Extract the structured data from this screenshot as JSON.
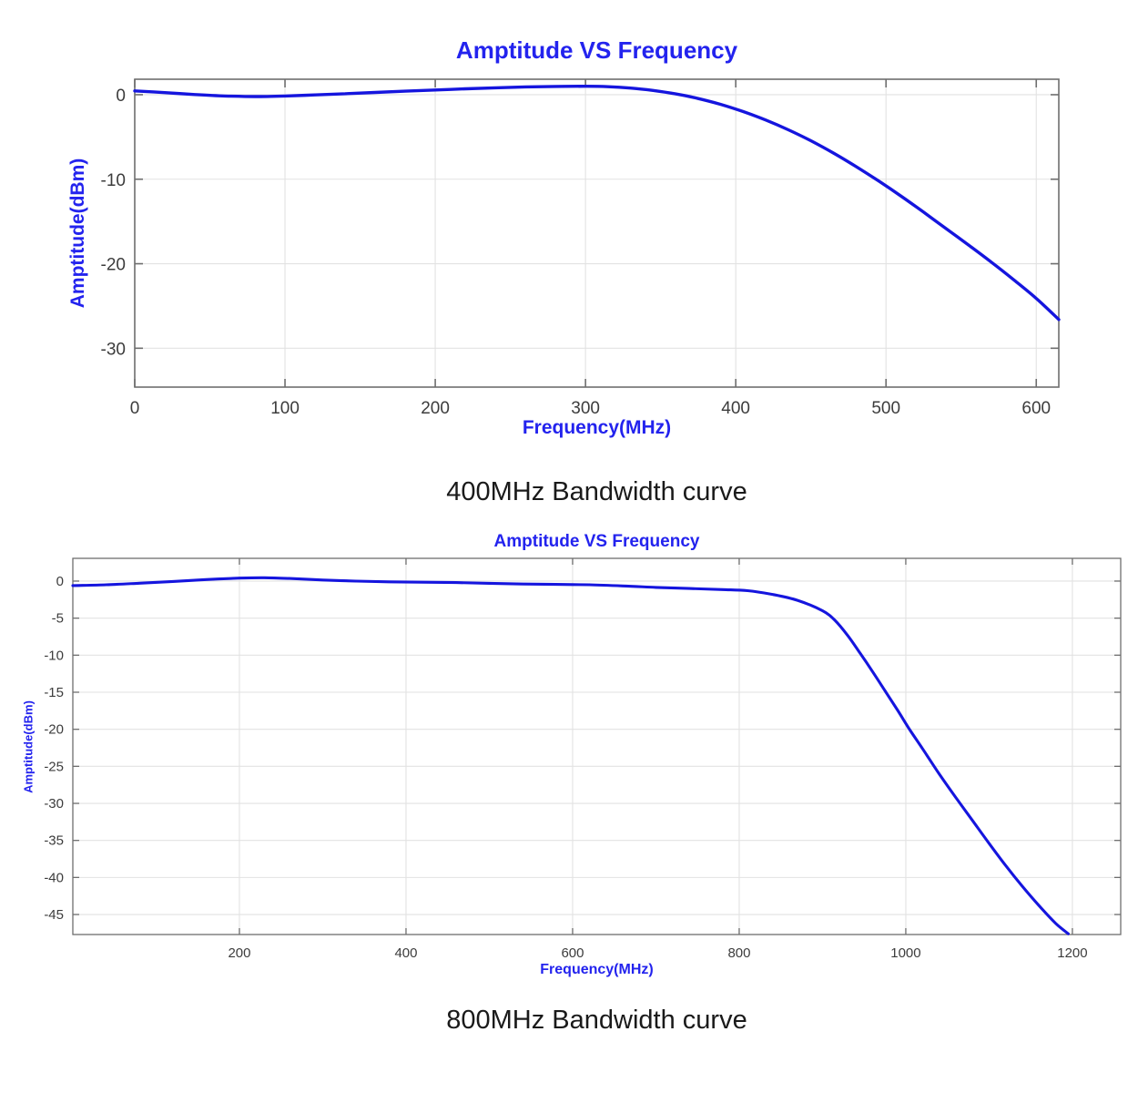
{
  "colors": {
    "accent_text": "#2323EE",
    "caption_text": "#1A1A1A",
    "grid": "#E2E2E2",
    "box": "#6E6E6E",
    "tick_label": "#3C3C3C",
    "background": "#FFFFFF"
  },
  "chart_data": [
    {
      "type": "line",
      "title": "Amptitude VS Frequency",
      "xlabel": "Frequency(MHz)",
      "ylabel": "Amptitude(dBm)",
      "caption": "400MHz Bandwidth curve",
      "line_color": "#1515DE",
      "grid": true,
      "xlim": [
        0,
        615
      ],
      "ylim": [
        -34.6,
        1.83
      ],
      "xticks": [
        0,
        100,
        200,
        300,
        400,
        500,
        600
      ],
      "yticks": [
        0,
        -10,
        -20,
        -30
      ],
      "x": [
        0,
        20,
        40,
        60,
        80,
        100,
        120,
        140,
        160,
        180,
        200,
        220,
        240,
        260,
        280,
        300,
        315,
        330,
        345,
        360,
        375,
        390,
        405,
        420,
        435,
        450,
        465,
        480,
        495,
        510,
        525,
        540,
        555,
        570,
        585,
        600,
        615
      ],
      "y": [
        0.45,
        0.25,
        0.02,
        -0.15,
        -0.22,
        -0.15,
        -0.02,
        0.12,
        0.27,
        0.42,
        0.56,
        0.7,
        0.82,
        0.92,
        0.98,
        1.0,
        0.95,
        0.78,
        0.5,
        0.1,
        -0.45,
        -1.15,
        -2.0,
        -3.0,
        -4.15,
        -5.45,
        -6.9,
        -8.5,
        -10.2,
        -12.0,
        -13.9,
        -15.85,
        -17.8,
        -19.8,
        -21.9,
        -24.1,
        -26.6
      ]
    },
    {
      "type": "line",
      "title": "Amptitude VS Frequency",
      "xlabel": "Frequency(MHz)",
      "ylabel": "Amptitude(dBm)",
      "caption": "800MHz Bandwidth curve",
      "line_color": "#1515DE",
      "grid": true,
      "xlim": [
        0,
        1258
      ],
      "ylim": [
        -47.7,
        3.07
      ],
      "xticks": [
        200,
        400,
        600,
        800,
        1000,
        1200
      ],
      "yticks": [
        0,
        -5,
        -10,
        -15,
        -20,
        -25,
        -30,
        -35,
        -40,
        -45
      ],
      "x": [
        0,
        40,
        80,
        120,
        160,
        200,
        230,
        260,
        300,
        340,
        380,
        420,
        460,
        500,
        540,
        580,
        620,
        660,
        700,
        740,
        780,
        810,
        840,
        870,
        900,
        915,
        930,
        945,
        960,
        975,
        990,
        1005,
        1020,
        1040,
        1060,
        1080,
        1100,
        1120,
        1140,
        1160,
        1180,
        1195
      ],
      "y": [
        -0.6,
        -0.5,
        -0.28,
        -0.05,
        0.2,
        0.4,
        0.45,
        0.35,
        0.15,
        0.0,
        -0.1,
        -0.15,
        -0.2,
        -0.3,
        -0.4,
        -0.45,
        -0.5,
        -0.65,
        -0.85,
        -1.0,
        -1.15,
        -1.3,
        -1.8,
        -2.6,
        -4.0,
        -5.3,
        -7.3,
        -9.7,
        -12.2,
        -14.8,
        -17.4,
        -20.1,
        -22.6,
        -26.0,
        -29.2,
        -32.3,
        -35.4,
        -38.4,
        -41.2,
        -43.8,
        -46.2,
        -47.6
      ]
    }
  ]
}
